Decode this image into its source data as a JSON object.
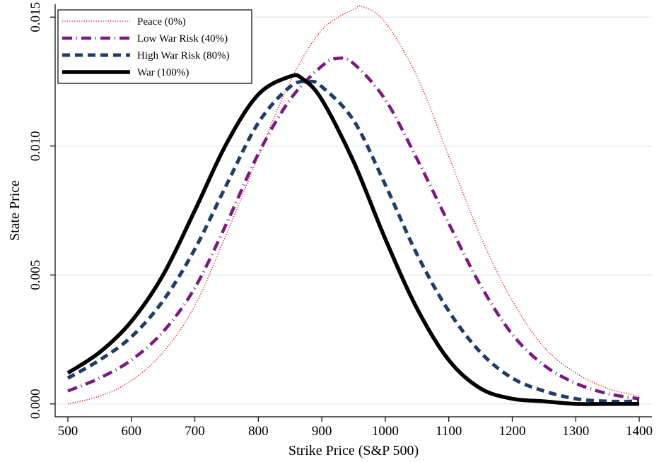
{
  "chart_data": {
    "type": "line",
    "title": "",
    "xlabel": "Strike Price (S&P 500)",
    "ylabel": "State Price",
    "xlim": [
      480,
      1420
    ],
    "ylim": [
      -0.0005,
      0.0155
    ],
    "x_ticks": [
      500,
      600,
      700,
      800,
      900,
      1000,
      1100,
      1200,
      1300,
      1400
    ],
    "y_ticks": [
      0.0,
      0.005,
      0.01,
      0.015
    ],
    "y_tick_labels": [
      "0.000",
      "0.005",
      "0.010",
      "0.015"
    ],
    "grid": "horizontal",
    "legend_position": "top-left",
    "series": [
      {
        "name": "Peace (0%)",
        "color": "#e8262b",
        "style": "dotted",
        "x": [
          500,
          550,
          600,
          650,
          700,
          750,
          800,
          850,
          900,
          950,
          965,
          1000,
          1050,
          1100,
          1150,
          1200,
          1250,
          1300,
          1350,
          1400
        ],
        "y": [
          0.0,
          0.0003,
          0.0009,
          0.002,
          0.0038,
          0.0066,
          0.0096,
          0.0125,
          0.0145,
          0.0153,
          0.0154,
          0.0148,
          0.0127,
          0.0096,
          0.0065,
          0.004,
          0.0022,
          0.0012,
          0.0006,
          0.0003
        ]
      },
      {
        "name": "Low War Risk (40%)",
        "color": "#7a1a7f",
        "style": "dashdot",
        "x": [
          500,
          550,
          600,
          650,
          700,
          750,
          800,
          850,
          900,
          925,
          950,
          1000,
          1050,
          1100,
          1150,
          1200,
          1250,
          1300,
          1350,
          1400
        ],
        "y": [
          0.0005,
          0.001,
          0.0017,
          0.0028,
          0.0045,
          0.007,
          0.0097,
          0.0118,
          0.0131,
          0.0134,
          0.0132,
          0.0118,
          0.0095,
          0.007,
          0.0046,
          0.0027,
          0.0015,
          0.0008,
          0.0004,
          0.0002
        ]
      },
      {
        "name": "High War Risk (80%)",
        "color": "#1f3d66",
        "style": "dashed",
        "x": [
          500,
          550,
          600,
          650,
          700,
          750,
          800,
          850,
          880,
          900,
          950,
          1000,
          1050,
          1100,
          1150,
          1200,
          1250,
          1300,
          1350,
          1400
        ],
        "y": [
          0.001,
          0.0017,
          0.0026,
          0.004,
          0.006,
          0.0085,
          0.0109,
          0.0123,
          0.0125,
          0.0123,
          0.011,
          0.0085,
          0.0058,
          0.0036,
          0.002,
          0.001,
          0.0005,
          0.0002,
          0.0001,
          0.0001
        ]
      },
      {
        "name": "War (100%)",
        "color": "#000000",
        "style": "solid",
        "x": [
          500,
          550,
          600,
          650,
          700,
          750,
          800,
          850,
          870,
          900,
          950,
          1000,
          1050,
          1100,
          1150,
          1200,
          1250,
          1300,
          1350,
          1400
        ],
        "y": [
          0.0012,
          0.002,
          0.0032,
          0.005,
          0.0075,
          0.0101,
          0.012,
          0.0127,
          0.0126,
          0.0118,
          0.0094,
          0.0064,
          0.0037,
          0.0017,
          0.0006,
          0.0002,
          0.0001,
          0.0,
          0.0,
          0.0
        ]
      }
    ]
  }
}
